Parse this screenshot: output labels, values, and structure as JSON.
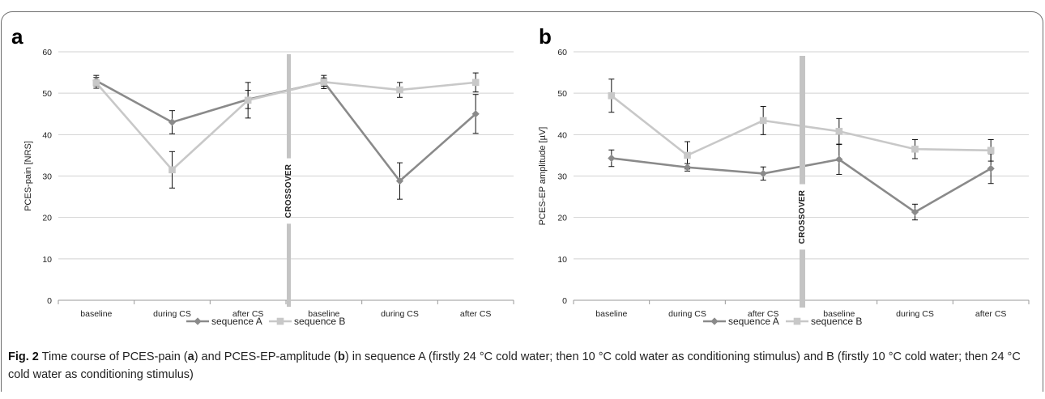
{
  "chart_data": [
    {
      "type": "line",
      "panel_letter": "a",
      "categories": [
        "baseline",
        "during CS",
        "after CS",
        "baseline",
        "during CS",
        "after CS"
      ],
      "ylabel": "PCES-pain [NRS]",
      "ylim": [
        0,
        60
      ],
      "yticks": [
        0,
        10,
        20,
        30,
        40,
        50,
        60
      ],
      "grid": true,
      "divider_label": "CROSSOVER",
      "divider_after_category": 3,
      "series": [
        {
          "name": "sequence A",
          "marker": "diamond",
          "color": "#8a8a8a",
          "values": [
            53.0,
            43.0,
            48.5,
            52.7,
            28.8,
            45.0
          ],
          "error": [
            1.3,
            2.8,
            2.2,
            1.6,
            4.4,
            4.7
          ]
        },
        {
          "name": "sequence B",
          "marker": "square",
          "color": "#c8c8c8",
          "values": [
            52.5,
            31.5,
            48.3,
            52.7,
            50.8,
            52.6
          ],
          "error": [
            1.3,
            4.4,
            4.3,
            1.0,
            1.8,
            2.3
          ]
        }
      ],
      "legend_position": "bottom"
    },
    {
      "type": "line",
      "panel_letter": "b",
      "categories": [
        "baseline",
        "during CS",
        "after CS",
        "baseline",
        "during CS",
        "after CS"
      ],
      "ylabel": "PCES-EP amplitude [µV]",
      "ylim": [
        0,
        60
      ],
      "yticks": [
        0,
        10,
        20,
        30,
        40,
        50,
        60
      ],
      "grid": true,
      "divider_label": "CROSSOVER",
      "divider_after_category": 3,
      "series": [
        {
          "name": "sequence A",
          "marker": "diamond",
          "color": "#8a8a8a",
          "values": [
            34.3,
            32.1,
            30.6,
            34.0,
            21.3,
            31.8
          ],
          "error": [
            2.0,
            0.9,
            1.6,
            3.6,
            1.9,
            3.6
          ]
        },
        {
          "name": "sequence B",
          "marker": "square",
          "color": "#c8c8c8",
          "values": [
            49.4,
            35.0,
            43.4,
            40.8,
            36.5,
            36.2
          ],
          "error": [
            4.0,
            3.3,
            3.4,
            3.1,
            2.3,
            2.6
          ]
        }
      ],
      "legend_position": "bottom"
    }
  ],
  "caption": {
    "fig_label": "Fig. 2",
    "p1": " Time course of PCES-pain (",
    "a": "a",
    "p2": ") and PCES-EP-amplitude (",
    "b": "b",
    "p3": ") in sequence A (firstly 24 °C cold water; then 10 °C cold water as conditioning stimulus) and B (firstly 10 °C cold water; then 24 °C cold water as conditioning stimulus)"
  }
}
